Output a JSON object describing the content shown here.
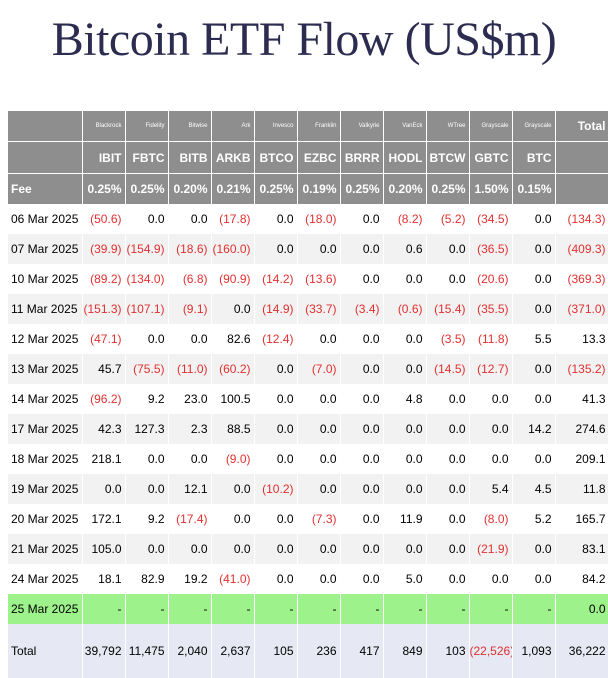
{
  "title": "Bitcoin ETF Flow (US$m)",
  "providers": [
    "Blackrock",
    "Fidelity",
    "Bitwise",
    "Ark",
    "Invesco",
    "Franklin",
    "Valkyrie",
    "VanEck",
    "WTree",
    "Grayscale",
    "Grayscale"
  ],
  "total_header": "Total",
  "tickers": [
    "IBIT",
    "FBTC",
    "BITB",
    "ARKB",
    "BTCO",
    "EZBC",
    "BRRR",
    "HODL",
    "BTCW",
    "GBTC",
    "BTC"
  ],
  "fee_label": "Fee",
  "fees": [
    "0.25%",
    "0.25%",
    "0.20%",
    "0.21%",
    "0.25%",
    "0.19%",
    "0.25%",
    "0.20%",
    "0.25%",
    "1.50%",
    "0.15%"
  ],
  "rows": [
    {
      "date": "06 Mar 2025",
      "values": [
        "(50.6)",
        "0.0",
        "0.0",
        "(17.8)",
        "0.0",
        "(18.0)",
        "0.0",
        "(8.2)",
        "(5.2)",
        "(34.5)",
        "0.0",
        "(134.3)"
      ]
    },
    {
      "date": "07 Mar 2025",
      "values": [
        "(39.9)",
        "(154.9)",
        "(18.6)",
        "(160.0)",
        "0.0",
        "0.0",
        "0.0",
        "0.6",
        "0.0",
        "(36.5)",
        "0.0",
        "(409.3)"
      ]
    },
    {
      "date": "10 Mar 2025",
      "values": [
        "(89.2)",
        "(134.0)",
        "(6.8)",
        "(90.9)",
        "(14.2)",
        "(13.6)",
        "0.0",
        "0.0",
        "0.0",
        "(20.6)",
        "0.0",
        "(369.3)"
      ]
    },
    {
      "date": "11 Mar 2025",
      "values": [
        "(151.3)",
        "(107.1)",
        "(9.1)",
        "0.0",
        "(14.9)",
        "(33.7)",
        "(3.4)",
        "(0.6)",
        "(15.4)",
        "(35.5)",
        "0.0",
        "(371.0)"
      ]
    },
    {
      "date": "12 Mar 2025",
      "values": [
        "(47.1)",
        "0.0",
        "0.0",
        "82.6",
        "(12.4)",
        "0.0",
        "0.0",
        "0.0",
        "(3.5)",
        "(11.8)",
        "5.5",
        "13.3"
      ]
    },
    {
      "date": "13 Mar 2025",
      "values": [
        "45.7",
        "(75.5)",
        "(11.0)",
        "(60.2)",
        "0.0",
        "(7.0)",
        "0.0",
        "0.0",
        "(14.5)",
        "(12.7)",
        "0.0",
        "(135.2)"
      ]
    },
    {
      "date": "14 Mar 2025",
      "values": [
        "(96.2)",
        "9.2",
        "23.0",
        "100.5",
        "0.0",
        "0.0",
        "0.0",
        "4.8",
        "0.0",
        "0.0",
        "0.0",
        "41.3"
      ]
    },
    {
      "date": "17 Mar 2025",
      "values": [
        "42.3",
        "127.3",
        "2.3",
        "88.5",
        "0.0",
        "0.0",
        "0.0",
        "0.0",
        "0.0",
        "0.0",
        "14.2",
        "274.6"
      ]
    },
    {
      "date": "18 Mar 2025",
      "values": [
        "218.1",
        "0.0",
        "0.0",
        "(9.0)",
        "0.0",
        "0.0",
        "0.0",
        "0.0",
        "0.0",
        "0.0",
        "0.0",
        "209.1"
      ]
    },
    {
      "date": "19 Mar 2025",
      "values": [
        "0.0",
        "0.0",
        "12.1",
        "0.0",
        "(10.2)",
        "0.0",
        "0.0",
        "0.0",
        "0.0",
        "5.4",
        "4.5",
        "11.8"
      ]
    },
    {
      "date": "20 Mar 2025",
      "values": [
        "172.1",
        "9.2",
        "(17.4)",
        "0.0",
        "0.0",
        "(7.3)",
        "0.0",
        "11.9",
        "0.0",
        "(8.0)",
        "5.2",
        "165.7"
      ]
    },
    {
      "date": "21 Mar 2025",
      "values": [
        "105.0",
        "0.0",
        "0.0",
        "0.0",
        "0.0",
        "0.0",
        "0.0",
        "0.0",
        "0.0",
        "(21.9)",
        "0.0",
        "83.1"
      ]
    },
    {
      "date": "24 Mar 2025",
      "values": [
        "18.1",
        "82.9",
        "19.2",
        "(41.0)",
        "0.0",
        "0.0",
        "0.0",
        "5.0",
        "0.0",
        "0.0",
        "0.0",
        "84.2"
      ]
    },
    {
      "date": "25 Mar 2025",
      "values": [
        "-",
        "-",
        "-",
        "-",
        "-",
        "-",
        "-",
        "-",
        "-",
        "-",
        "-",
        "0.0"
      ],
      "highlight": true
    }
  ],
  "total_row": {
    "label": "Total",
    "values": [
      "39,792",
      "11,475",
      "2,040",
      "2,637",
      "105",
      "236",
      "417",
      "849",
      "103",
      "(22,526)",
      "1,093",
      "36,222"
    ]
  },
  "colors": {
    "header_bg": "#8e8e8e",
    "negative": "#e03030",
    "highlight": "#9df28b",
    "total_bg": "#e6e8f3",
    "title": "#2b2c4f"
  }
}
